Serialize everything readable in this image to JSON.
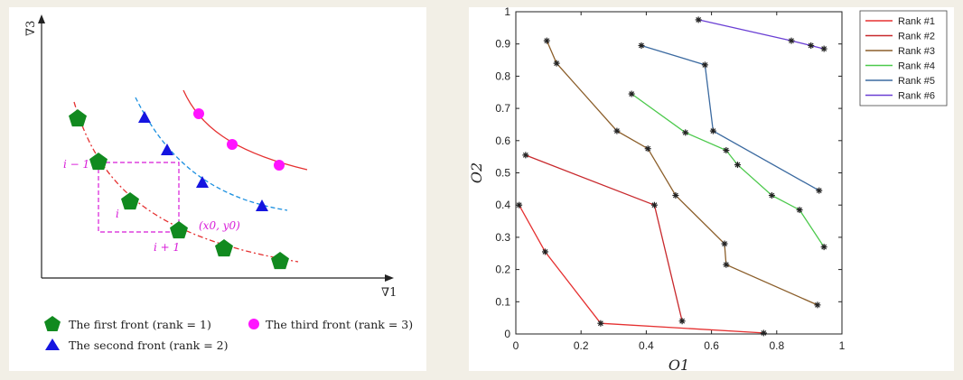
{
  "left_diagram": {
    "y_axis_label": "∇3",
    "x_axis_label": "∇1",
    "annotations": {
      "i_minus_1": "i − 1",
      "i": "i",
      "i_plus_1": "i + 1",
      "point": "(x0, y0)"
    },
    "legend": [
      {
        "label": "The first front (rank = 1)",
        "color": "#118a1f",
        "shape": "pentagon"
      },
      {
        "label": "The second front (rank = 2)",
        "color": "#1515e0",
        "shape": "triangle"
      },
      {
        "label": "The third front (rank = 3)",
        "color": "#ff14ff",
        "shape": "circle"
      }
    ]
  },
  "chart_data": {
    "type": "line",
    "xlabel": "O1",
    "ylabel": "O2",
    "xlim": [
      0,
      1
    ],
    "ylim": [
      0,
      1
    ],
    "xticks": [
      "0",
      "0.2",
      "0.4",
      "0.6",
      "0.8",
      "1"
    ],
    "yticks": [
      "0",
      "0.1",
      "0.2",
      "0.3",
      "0.4",
      "0.5",
      "0.6",
      "0.7",
      "0.8",
      "0.9",
      "1"
    ],
    "legend_position": "top-right",
    "series": [
      {
        "name": "Rank #1",
        "color": "#e53030",
        "points": [
          [
            0.01,
            0.4
          ],
          [
            0.09,
            0.255
          ],
          [
            0.26,
            0.033
          ],
          [
            0.76,
            0.003
          ]
        ]
      },
      {
        "name": "Rank #2",
        "color": "#c8282c",
        "points": [
          [
            0.03,
            0.555
          ],
          [
            0.425,
            0.4
          ],
          [
            0.51,
            0.04
          ]
        ]
      },
      {
        "name": "Rank #3",
        "color": "#8b5e2a",
        "points": [
          [
            0.095,
            0.91
          ],
          [
            0.125,
            0.84
          ],
          [
            0.31,
            0.63
          ],
          [
            0.405,
            0.575
          ],
          [
            0.49,
            0.43
          ],
          [
            0.64,
            0.28
          ],
          [
            0.645,
            0.215
          ],
          [
            0.925,
            0.09
          ]
        ]
      },
      {
        "name": "Rank #4",
        "color": "#4cc94c",
        "points": [
          [
            0.355,
            0.745
          ],
          [
            0.52,
            0.625
          ],
          [
            0.645,
            0.57
          ],
          [
            0.68,
            0.525
          ],
          [
            0.785,
            0.43
          ],
          [
            0.87,
            0.385
          ],
          [
            0.945,
            0.27
          ]
        ]
      },
      {
        "name": "Rank #5",
        "color": "#3b6aa0",
        "points": [
          [
            0.385,
            0.895
          ],
          [
            0.58,
            0.835
          ],
          [
            0.605,
            0.63
          ],
          [
            0.93,
            0.445
          ]
        ]
      },
      {
        "name": "Rank #6",
        "color": "#6a3fd4",
        "points": [
          [
            0.56,
            0.975
          ],
          [
            0.845,
            0.91
          ],
          [
            0.905,
            0.895
          ],
          [
            0.945,
            0.885
          ]
        ]
      }
    ]
  }
}
